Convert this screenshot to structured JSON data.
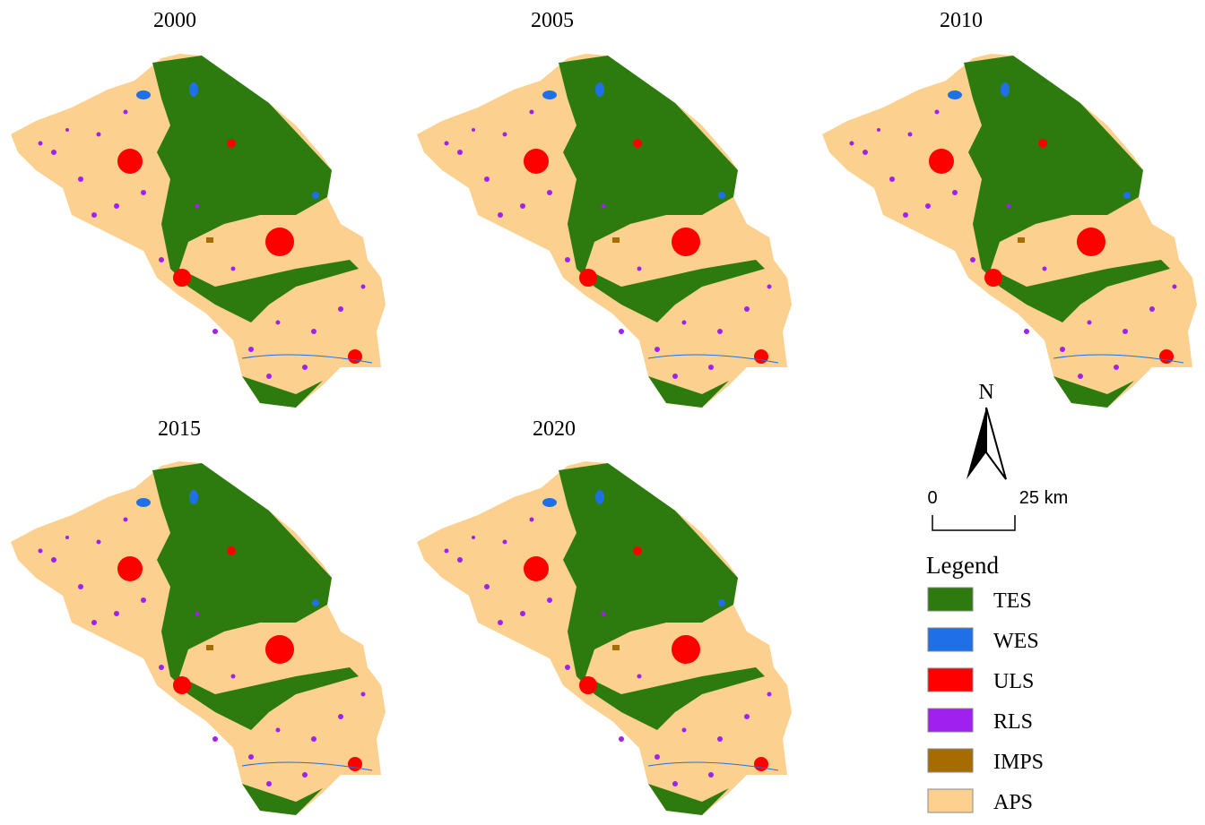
{
  "maps": [
    {
      "title": "2000"
    },
    {
      "title": "2005"
    },
    {
      "title": "2010"
    },
    {
      "title": "2015"
    },
    {
      "title": "2020"
    }
  ],
  "north_arrow": {
    "label": "N"
  },
  "scale_bar": {
    "start": "0",
    "end": "25 km"
  },
  "legend": {
    "title": "Legend",
    "items": [
      {
        "label": "TES",
        "color": "#2d7a0f"
      },
      {
        "label": "WES",
        "color": "#1f6fe6"
      },
      {
        "label": "ULS",
        "color": "#ff0000"
      },
      {
        "label": "RLS",
        "color": "#a020f0"
      },
      {
        "label": "IMPS",
        "color": "#a66c00"
      },
      {
        "label": "APS",
        "color": "#fcd08f"
      }
    ]
  }
}
